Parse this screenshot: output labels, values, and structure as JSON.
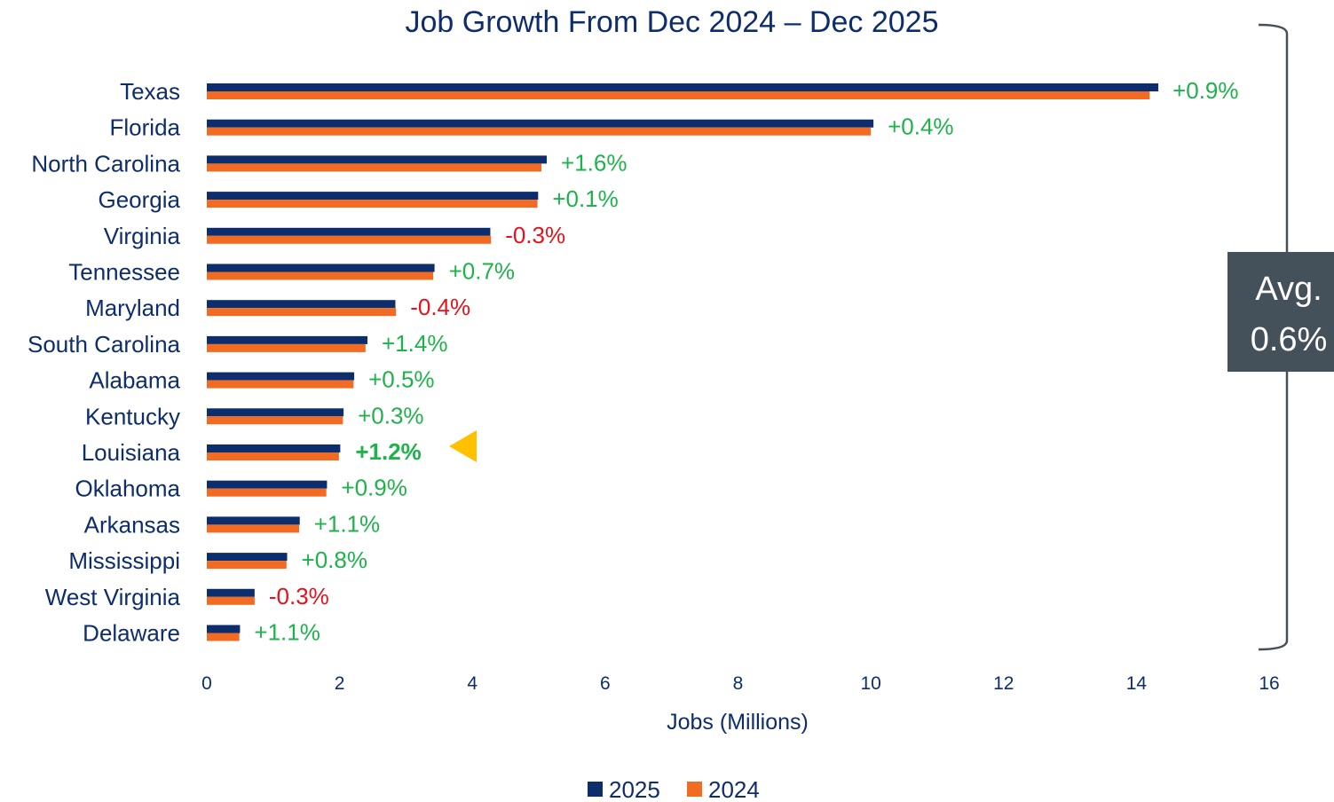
{
  "chart_data": {
    "type": "bar",
    "orientation": "horizontal",
    "title": "Job Growth From Dec 2024 – Dec 2025",
    "xlabel": "Jobs (Millions)",
    "ylabel": "",
    "xlim": [
      0,
      16
    ],
    "xticks": [
      0,
      2,
      4,
      6,
      8,
      10,
      12,
      14,
      16
    ],
    "grid": false,
    "legend_position": "bottom",
    "categories": [
      "Texas",
      "Florida",
      "North Carolina",
      "Georgia",
      "Virginia",
      "Tennessee",
      "Maryland",
      "South Carolina",
      "Alabama",
      "Kentucky",
      "Louisiana",
      "Oklahoma",
      "Arkansas",
      "Mississippi",
      "West Virginia",
      "Delaware"
    ],
    "series": [
      {
        "name": "2025",
        "color": "#0d2d6c",
        "values": [
          14.33,
          10.04,
          5.12,
          4.99,
          4.27,
          3.43,
          2.84,
          2.42,
          2.22,
          2.06,
          2.01,
          1.81,
          1.4,
          1.21,
          0.72,
          0.5
        ]
      },
      {
        "name": "2024",
        "color": "#f26b22",
        "values": [
          14.2,
          10.0,
          5.04,
          4.98,
          4.28,
          3.41,
          2.85,
          2.39,
          2.21,
          2.05,
          1.99,
          1.8,
          1.39,
          1.2,
          0.72,
          0.49
        ]
      }
    ],
    "data_labels": [
      "+0.9%",
      "+0.4%",
      "+1.6%",
      "+0.1%",
      "-0.3%",
      "+0.7%",
      "-0.4%",
      "+1.4%",
      "+0.5%",
      "+0.3%",
      "+1.2%",
      "+0.9%",
      "+1.1%",
      "+0.8%",
      "-0.3%",
      "+1.1%"
    ],
    "label_colors": {
      "positive": "#1eb24b",
      "negative": "#e8101a"
    },
    "highlight": {
      "category": "Louisiana",
      "marker": "triangle-left",
      "color": "#ffc000"
    },
    "average_callout": {
      "line1": "Avg.",
      "line2": "0.6%",
      "background": "#44505a"
    }
  }
}
